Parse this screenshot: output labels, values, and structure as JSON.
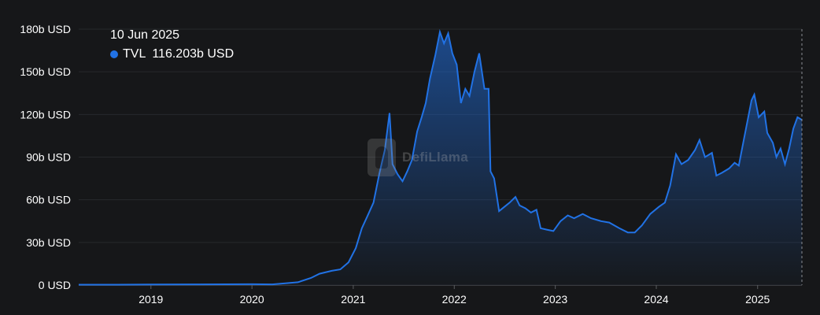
{
  "tooltip": {
    "date": "10 Jun 2025",
    "series_name": "TVL",
    "value": "116.203b USD"
  },
  "watermark": {
    "text": "DefiLlama"
  },
  "colors": {
    "line": "#2172e5",
    "background": "#161719",
    "grid": "#26282c",
    "text": "#ffffff"
  },
  "chart_data": {
    "type": "area",
    "yticks": [
      "0 USD",
      "30b USD",
      "60b USD",
      "90b USD",
      "120b USD",
      "150b USD",
      "180b USD"
    ],
    "xticks": [
      "2019",
      "2020",
      "2021",
      "2022",
      "2023",
      "2024",
      "2025"
    ],
    "ylim": [
      0,
      180
    ],
    "xlim": [
      "2018-04-15",
      "2025-06-10"
    ],
    "grid": true,
    "series": [
      {
        "name": "TVL",
        "unit": "b USD",
        "points": [
          [
            "2018-04-15",
            0.3
          ],
          [
            "2018-09-01",
            0.3
          ],
          [
            "2019-01-01",
            0.4
          ],
          [
            "2019-06-01",
            0.5
          ],
          [
            "2020-01-01",
            0.6
          ],
          [
            "2020-03-15",
            0.5
          ],
          [
            "2020-05-01",
            1.2
          ],
          [
            "2020-06-15",
            2.0
          ],
          [
            "2020-08-01",
            5.0
          ],
          [
            "2020-09-01",
            8.0
          ],
          [
            "2020-10-15",
            10.0
          ],
          [
            "2020-11-15",
            11.0
          ],
          [
            "2020-12-15",
            16.0
          ],
          [
            "2021-01-10",
            26.0
          ],
          [
            "2021-02-01",
            40.0
          ],
          [
            "2021-02-20",
            48.0
          ],
          [
            "2021-03-15",
            58.0
          ],
          [
            "2021-04-05",
            78.0
          ],
          [
            "2021-04-25",
            95.0
          ],
          [
            "2021-05-12",
            121.0
          ],
          [
            "2021-05-23",
            85.0
          ],
          [
            "2021-06-10",
            78.0
          ],
          [
            "2021-06-28",
            73.0
          ],
          [
            "2021-07-15",
            80.0
          ],
          [
            "2021-08-01",
            88.0
          ],
          [
            "2021-08-20",
            108.0
          ],
          [
            "2021-09-05",
            118.0
          ],
          [
            "2021-09-20",
            128.0
          ],
          [
            "2021-10-05",
            145.0
          ],
          [
            "2021-10-25",
            162.0
          ],
          [
            "2021-11-10",
            178.0
          ],
          [
            "2021-11-25",
            170.0
          ],
          [
            "2021-12-10",
            177.0
          ],
          [
            "2021-12-25",
            163.0
          ],
          [
            "2022-01-10",
            155.0
          ],
          [
            "2022-01-25",
            128.0
          ],
          [
            "2022-02-10",
            138.0
          ],
          [
            "2022-02-25",
            133.0
          ],
          [
            "2022-03-15",
            150.0
          ],
          [
            "2022-04-01",
            163.0
          ],
          [
            "2022-04-20",
            138.0
          ],
          [
            "2022-05-05",
            138.0
          ],
          [
            "2022-05-12",
            80.0
          ],
          [
            "2022-05-25",
            75.0
          ],
          [
            "2022-06-12",
            52.0
          ],
          [
            "2022-07-01",
            55.0
          ],
          [
            "2022-07-20",
            58.0
          ],
          [
            "2022-08-10",
            62.0
          ],
          [
            "2022-08-25",
            56.0
          ],
          [
            "2022-09-15",
            54.0
          ],
          [
            "2022-10-05",
            51.0
          ],
          [
            "2022-10-25",
            53.0
          ],
          [
            "2022-11-09",
            40.0
          ],
          [
            "2022-12-01",
            39.0
          ],
          [
            "2022-12-25",
            38.0
          ],
          [
            "2023-01-20",
            45.0
          ],
          [
            "2023-02-15",
            49.0
          ],
          [
            "2023-03-10",
            47.0
          ],
          [
            "2023-04-10",
            50.0
          ],
          [
            "2023-05-10",
            47.0
          ],
          [
            "2023-06-15",
            45.0
          ],
          [
            "2023-07-15",
            44.0
          ],
          [
            "2023-08-20",
            40.0
          ],
          [
            "2023-09-20",
            37.0
          ],
          [
            "2023-10-15",
            37.0
          ],
          [
            "2023-11-10",
            42.0
          ],
          [
            "2023-12-10",
            50.0
          ],
          [
            "2024-01-10",
            55.0
          ],
          [
            "2024-02-01",
            58.0
          ],
          [
            "2024-02-20",
            70.0
          ],
          [
            "2024-03-12",
            92.0
          ],
          [
            "2024-04-01",
            85.0
          ],
          [
            "2024-04-25",
            88.0
          ],
          [
            "2024-05-20",
            95.0
          ],
          [
            "2024-06-05",
            102.0
          ],
          [
            "2024-06-25",
            90.0
          ],
          [
            "2024-07-20",
            93.0
          ],
          [
            "2024-08-05",
            77.0
          ],
          [
            "2024-08-25",
            79.0
          ],
          [
            "2024-09-20",
            82.0
          ],
          [
            "2024-10-10",
            86.0
          ],
          [
            "2024-10-25",
            84.0
          ],
          [
            "2024-11-10",
            100.0
          ],
          [
            "2024-11-25",
            115.0
          ],
          [
            "2024-12-10",
            130.0
          ],
          [
            "2024-12-20",
            134.0
          ],
          [
            "2025-01-05",
            118.0
          ],
          [
            "2025-01-25",
            122.0
          ],
          [
            "2025-02-05",
            107.0
          ],
          [
            "2025-02-25",
            100.0
          ],
          [
            "2025-03-10",
            90.0
          ],
          [
            "2025-03-25",
            96.0
          ],
          [
            "2025-04-10",
            85.0
          ],
          [
            "2025-04-25",
            96.0
          ],
          [
            "2025-05-10",
            110.0
          ],
          [
            "2025-05-25",
            118.0
          ],
          [
            "2025-06-10",
            116.2
          ]
        ]
      }
    ]
  }
}
